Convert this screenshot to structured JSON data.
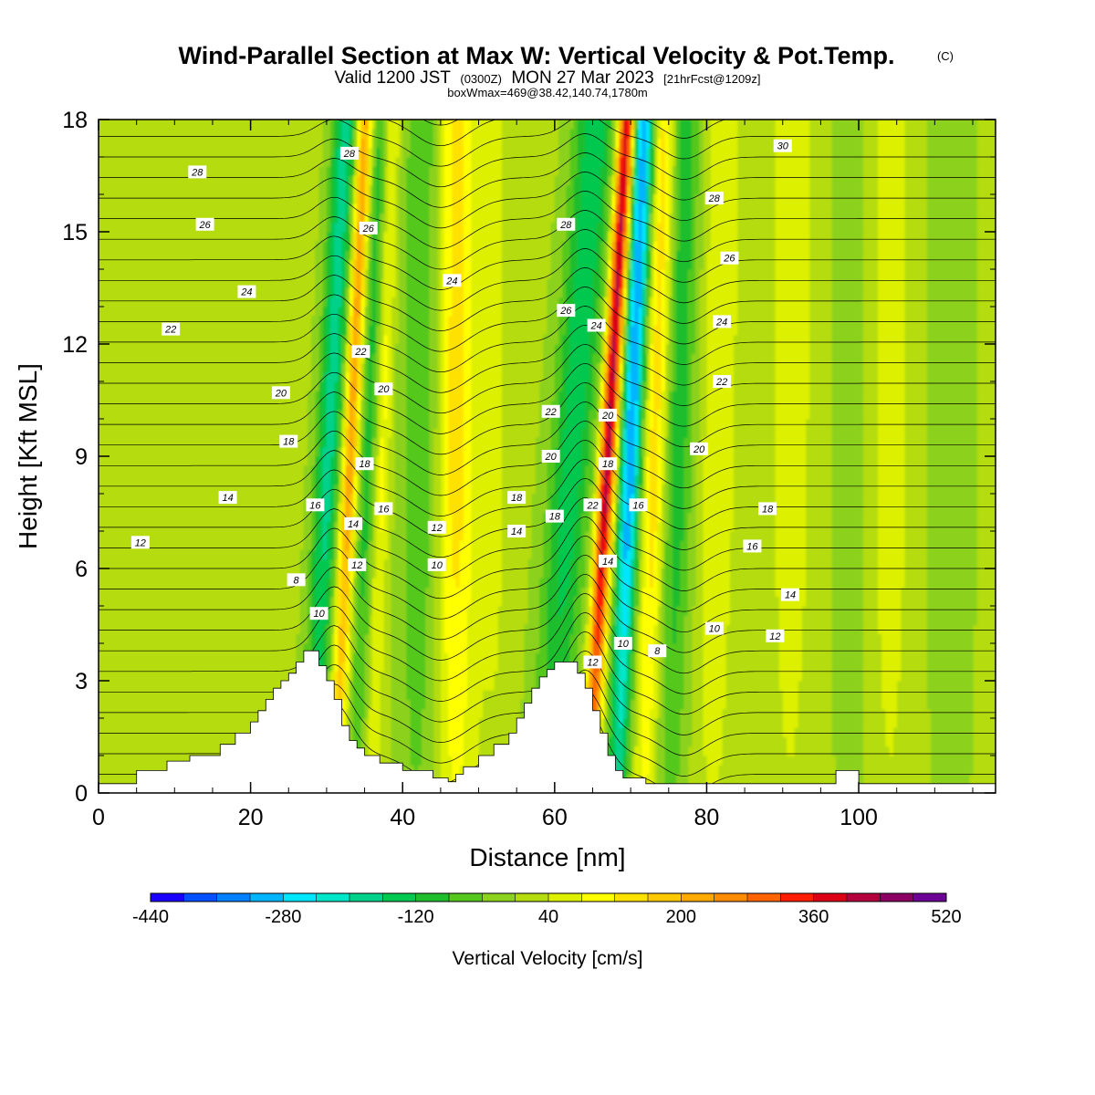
{
  "title": {
    "main": "Wind-Parallel Section at Max W: Vertical Velocity & Pot.Temp.",
    "main_mark": "(C)",
    "valid_a": "Valid 1200 JST",
    "valid_b": "(0300Z)",
    "valid_c": "MON 27 Mar 2023",
    "valid_d": "[21hrFcst@1209z]",
    "box": "boxWmax=469@38.42,140.74,1780m"
  },
  "chart_data": {
    "type": "heatmap",
    "xlabel": "Distance [nm]",
    "ylabel": "Height [Kft MSL]",
    "xlim": [
      0,
      118
    ],
    "ylim": [
      0,
      18
    ],
    "x_ticks": [
      "0",
      "20",
      "40",
      "60",
      "80",
      "100"
    ],
    "x_tick_values": [
      0,
      20,
      40,
      60,
      80,
      100
    ],
    "y_ticks": [
      "0",
      "3",
      "6",
      "9",
      "12",
      "15",
      "18"
    ],
    "y_tick_values": [
      0,
      3,
      6,
      9,
      12,
      15,
      18
    ],
    "colorbar": {
      "title": "Vertical Velocity [cm/s]",
      "labels": [
        "-440",
        "-280",
        "-120",
        "40",
        "200",
        "360",
        "520"
      ],
      "min": -440,
      "max": 520,
      "step": 40,
      "colors": [
        "#1a00ff",
        "#0050ff",
        "#0080ff",
        "#00b4ff",
        "#00e6ff",
        "#00e6c8",
        "#00d28c",
        "#00c850",
        "#1ebe2d",
        "#55c81e",
        "#8cd21e",
        "#b4dc0f",
        "#dcf000",
        "#ffff00",
        "#ffe100",
        "#ffc800",
        "#ffaa00",
        "#ff8c00",
        "#ff6400",
        "#ff1e00",
        "#dc0014",
        "#b4003c",
        "#8c0064",
        "#6e0096"
      ]
    },
    "terrain": [
      [
        0,
        0.25
      ],
      [
        5,
        0.25
      ],
      [
        5,
        0.6
      ],
      [
        9,
        0.6
      ],
      [
        9,
        0.85
      ],
      [
        12,
        0.85
      ],
      [
        12,
        1.0
      ],
      [
        16,
        1.0
      ],
      [
        16,
        1.3
      ],
      [
        18,
        1.3
      ],
      [
        18,
        1.6
      ],
      [
        20,
        1.6
      ],
      [
        20,
        1.9
      ],
      [
        21,
        1.9
      ],
      [
        21,
        2.2
      ],
      [
        22,
        2.2
      ],
      [
        22,
        2.5
      ],
      [
        23,
        2.5
      ],
      [
        23,
        2.8
      ],
      [
        24,
        2.8
      ],
      [
        24,
        3.0
      ],
      [
        25,
        3.0
      ],
      [
        25,
        3.2
      ],
      [
        26,
        3.2
      ],
      [
        26,
        3.5
      ],
      [
        27,
        3.5
      ],
      [
        27,
        3.8
      ],
      [
        29,
        3.8
      ],
      [
        29,
        3.4
      ],
      [
        30,
        3.4
      ],
      [
        30,
        3.0
      ],
      [
        31,
        3.0
      ],
      [
        31,
        2.5
      ],
      [
        32,
        2.5
      ],
      [
        32,
        1.8
      ],
      [
        33,
        1.8
      ],
      [
        33,
        1.4
      ],
      [
        34,
        1.4
      ],
      [
        34,
        1.2
      ],
      [
        35,
        1.2
      ],
      [
        35,
        1.0
      ],
      [
        37,
        1.0
      ],
      [
        37,
        0.8
      ],
      [
        40,
        0.8
      ],
      [
        40,
        0.6
      ],
      [
        44,
        0.6
      ],
      [
        44,
        0.4
      ],
      [
        46,
        0.4
      ],
      [
        46,
        0.3
      ],
      [
        47,
        0.3
      ],
      [
        47,
        0.5
      ],
      [
        48,
        0.5
      ],
      [
        48,
        0.7
      ],
      [
        50,
        0.7
      ],
      [
        50,
        1.0
      ],
      [
        52,
        1.0
      ],
      [
        52,
        1.3
      ],
      [
        54,
        1.3
      ],
      [
        54,
        1.6
      ],
      [
        55,
        1.6
      ],
      [
        55,
        2.0
      ],
      [
        56,
        2.0
      ],
      [
        56,
        2.4
      ],
      [
        57,
        2.4
      ],
      [
        57,
        2.8
      ],
      [
        58,
        2.8
      ],
      [
        58,
        3.1
      ],
      [
        59,
        3.1
      ],
      [
        59,
        3.3
      ],
      [
        60,
        3.3
      ],
      [
        60,
        3.5
      ],
      [
        63,
        3.5
      ],
      [
        63,
        3.2
      ],
      [
        64,
        3.2
      ],
      [
        64,
        2.8
      ],
      [
        65,
        2.8
      ],
      [
        65,
        2.2
      ],
      [
        66,
        2.2
      ],
      [
        66,
        1.6
      ],
      [
        67,
        1.6
      ],
      [
        67,
        1.0
      ],
      [
        68,
        1.0
      ],
      [
        68,
        0.6
      ],
      [
        69,
        0.6
      ],
      [
        69,
        0.4
      ],
      [
        72,
        0.4
      ],
      [
        72,
        0.25
      ],
      [
        97,
        0.25
      ],
      [
        97,
        0.6
      ],
      [
        100,
        0.6
      ],
      [
        100,
        0.25
      ],
      [
        118,
        0.25
      ]
    ],
    "contour_labels": [
      {
        "text": "28",
        "x": 13,
        "y": 16.6
      },
      {
        "text": "26",
        "x": 14,
        "y": 15.2
      },
      {
        "text": "24",
        "x": 19.5,
        "y": 13.4
      },
      {
        "text": "22",
        "x": 9.5,
        "y": 12.4
      },
      {
        "text": "20",
        "x": 24,
        "y": 10.7
      },
      {
        "text": "18",
        "x": 25,
        "y": 9.4
      },
      {
        "text": "14",
        "x": 17,
        "y": 7.9
      },
      {
        "text": "12",
        "x": 5.5,
        "y": 6.7
      },
      {
        "text": "16",
        "x": 28.5,
        "y": 7.7
      },
      {
        "text": "8",
        "x": 26,
        "y": 5.7
      },
      {
        "text": "10",
        "x": 29,
        "y": 4.8
      },
      {
        "text": "28",
        "x": 33,
        "y": 17.1
      },
      {
        "text": "26",
        "x": 35.5,
        "y": 15.1
      },
      {
        "text": "22",
        "x": 34.5,
        "y": 11.8
      },
      {
        "text": "20",
        "x": 37.5,
        "y": 10.8
      },
      {
        "text": "18",
        "x": 35,
        "y": 8.8
      },
      {
        "text": "16",
        "x": 37.5,
        "y": 7.6
      },
      {
        "text": "14",
        "x": 33.5,
        "y": 7.2
      },
      {
        "text": "12",
        "x": 34,
        "y": 6.1
      },
      {
        "text": "24",
        "x": 46.5,
        "y": 13.7
      },
      {
        "text": "12",
        "x": 44.5,
        "y": 7.1
      },
      {
        "text": "10",
        "x": 44.5,
        "y": 6.1
      },
      {
        "text": "28",
        "x": 61.5,
        "y": 15.2
      },
      {
        "text": "26",
        "x": 61.5,
        "y": 12.9
      },
      {
        "text": "24",
        "x": 65.5,
        "y": 12.5
      },
      {
        "text": "22",
        "x": 59.5,
        "y": 10.2
      },
      {
        "text": "20",
        "x": 59.5,
        "y": 9.0
      },
      {
        "text": "18",
        "x": 55,
        "y": 7.9
      },
      {
        "text": "14",
        "x": 55,
        "y": 7.0
      },
      {
        "text": "18",
        "x": 60,
        "y": 7.4
      },
      {
        "text": "22",
        "x": 65,
        "y": 7.7
      },
      {
        "text": "20",
        "x": 67,
        "y": 10.1
      },
      {
        "text": "18",
        "x": 67,
        "y": 8.8
      },
      {
        "text": "16",
        "x": 71,
        "y": 7.7
      },
      {
        "text": "14",
        "x": 67,
        "y": 6.2
      },
      {
        "text": "12",
        "x": 65,
        "y": 3.5
      },
      {
        "text": "10",
        "x": 69,
        "y": 4.0
      },
      {
        "text": "8",
        "x": 73.5,
        "y": 3.8
      },
      {
        "text": "30",
        "x": 90,
        "y": 17.3
      },
      {
        "text": "28",
        "x": 81,
        "y": 15.9
      },
      {
        "text": "26",
        "x": 83,
        "y": 14.3
      },
      {
        "text": "24",
        "x": 82,
        "y": 12.6
      },
      {
        "text": "22",
        "x": 82,
        "y": 11.0
      },
      {
        "text": "20",
        "x": 79,
        "y": 9.2
      },
      {
        "text": "18",
        "x": 88,
        "y": 7.6
      },
      {
        "text": "16",
        "x": 86,
        "y": 6.6
      },
      {
        "text": "14",
        "x": 91,
        "y": 5.3
      },
      {
        "text": "12",
        "x": 89,
        "y": 4.2
      },
      {
        "text": "10",
        "x": 81,
        "y": 4.4
      }
    ]
  }
}
